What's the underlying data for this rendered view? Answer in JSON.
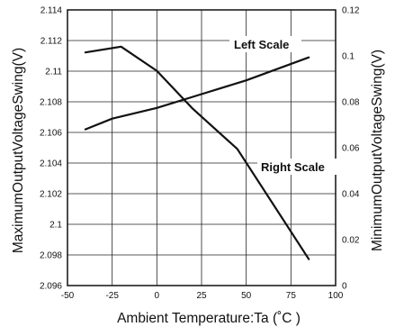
{
  "chart_data": {
    "type": "line",
    "xlabel": "Ambient Temperature:Ta (˚C )",
    "ylabel_left": "MaximumOutputVoltageSwing(V)",
    "ylabel_right": "MinimumOutputVoltageSwing(V)",
    "xlim": [
      -50,
      100
    ],
    "ylim_left": [
      2.096,
      2.114
    ],
    "ylim_right": [
      0,
      0.12
    ],
    "x_ticks": [
      "-50",
      "-25",
      "0",
      "25",
      "50",
      "75",
      "100"
    ],
    "y_left_ticks": [
      "2.096",
      "2.098",
      "2.1",
      "2.102",
      "2.104",
      "2.106",
      "2.108",
      "2.11",
      "2.112",
      "2.114"
    ],
    "y_right_ticks": [
      "0",
      "0.02",
      "0.04",
      "0.06",
      "0.08",
      "0.1",
      "0.12"
    ],
    "grid": true,
    "series": [
      {
        "name": "Left Scale",
        "axis": "left",
        "x": [
          -40,
          -25,
          0,
          25,
          50,
          85
        ],
        "y": [
          2.1062,
          2.1069,
          2.1076,
          2.1085,
          2.1094,
          2.1109
        ]
      },
      {
        "name": "Right Scale",
        "axis": "right",
        "x": [
          -40,
          -20,
          0,
          20,
          45,
          85
        ],
        "y": [
          0.1015,
          0.104,
          0.0935,
          0.077,
          0.0595,
          0.0115
        ]
      }
    ],
    "annotations": [
      "Left Scale",
      "Right Scale"
    ]
  }
}
